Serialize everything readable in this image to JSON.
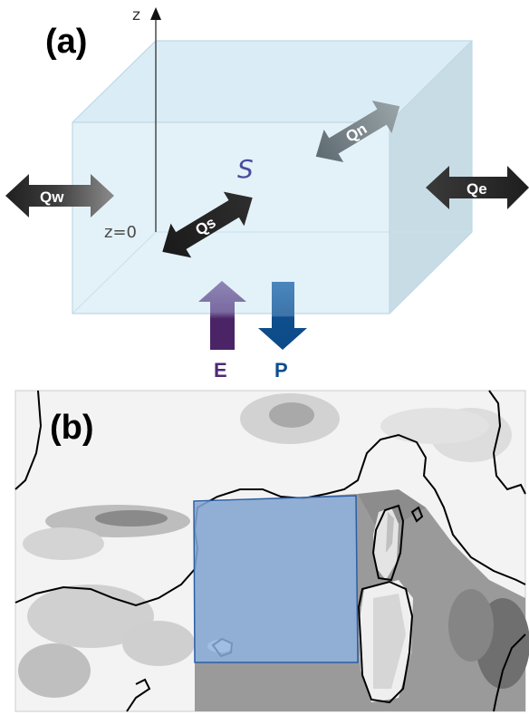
{
  "panel_a": {
    "label": "(a)",
    "axis_label": "z",
    "zero_label": "z=0",
    "storage_label": "S",
    "arrows": {
      "west": "Qw",
      "east": "Qe",
      "south": "Qs",
      "north": "Qn"
    },
    "vertical_fluxes": {
      "evaporation": "E",
      "precipitation": "P"
    }
  },
  "panel_b": {
    "label": "(b)"
  },
  "colors": {
    "box_face": "#e3f1f8",
    "box_top": "#d9ecf6",
    "box_side": "#c9dbe5",
    "box_edge": "#bcd6e4",
    "arrow_dark": "#2a2a2a",
    "storage": "#4a4d9c",
    "evaporation": "#4e2a73",
    "precipitation": "#0d4d8c",
    "domain_box_fill": "#8fb3e0",
    "domain_box_stroke": "#2b5ea6"
  }
}
